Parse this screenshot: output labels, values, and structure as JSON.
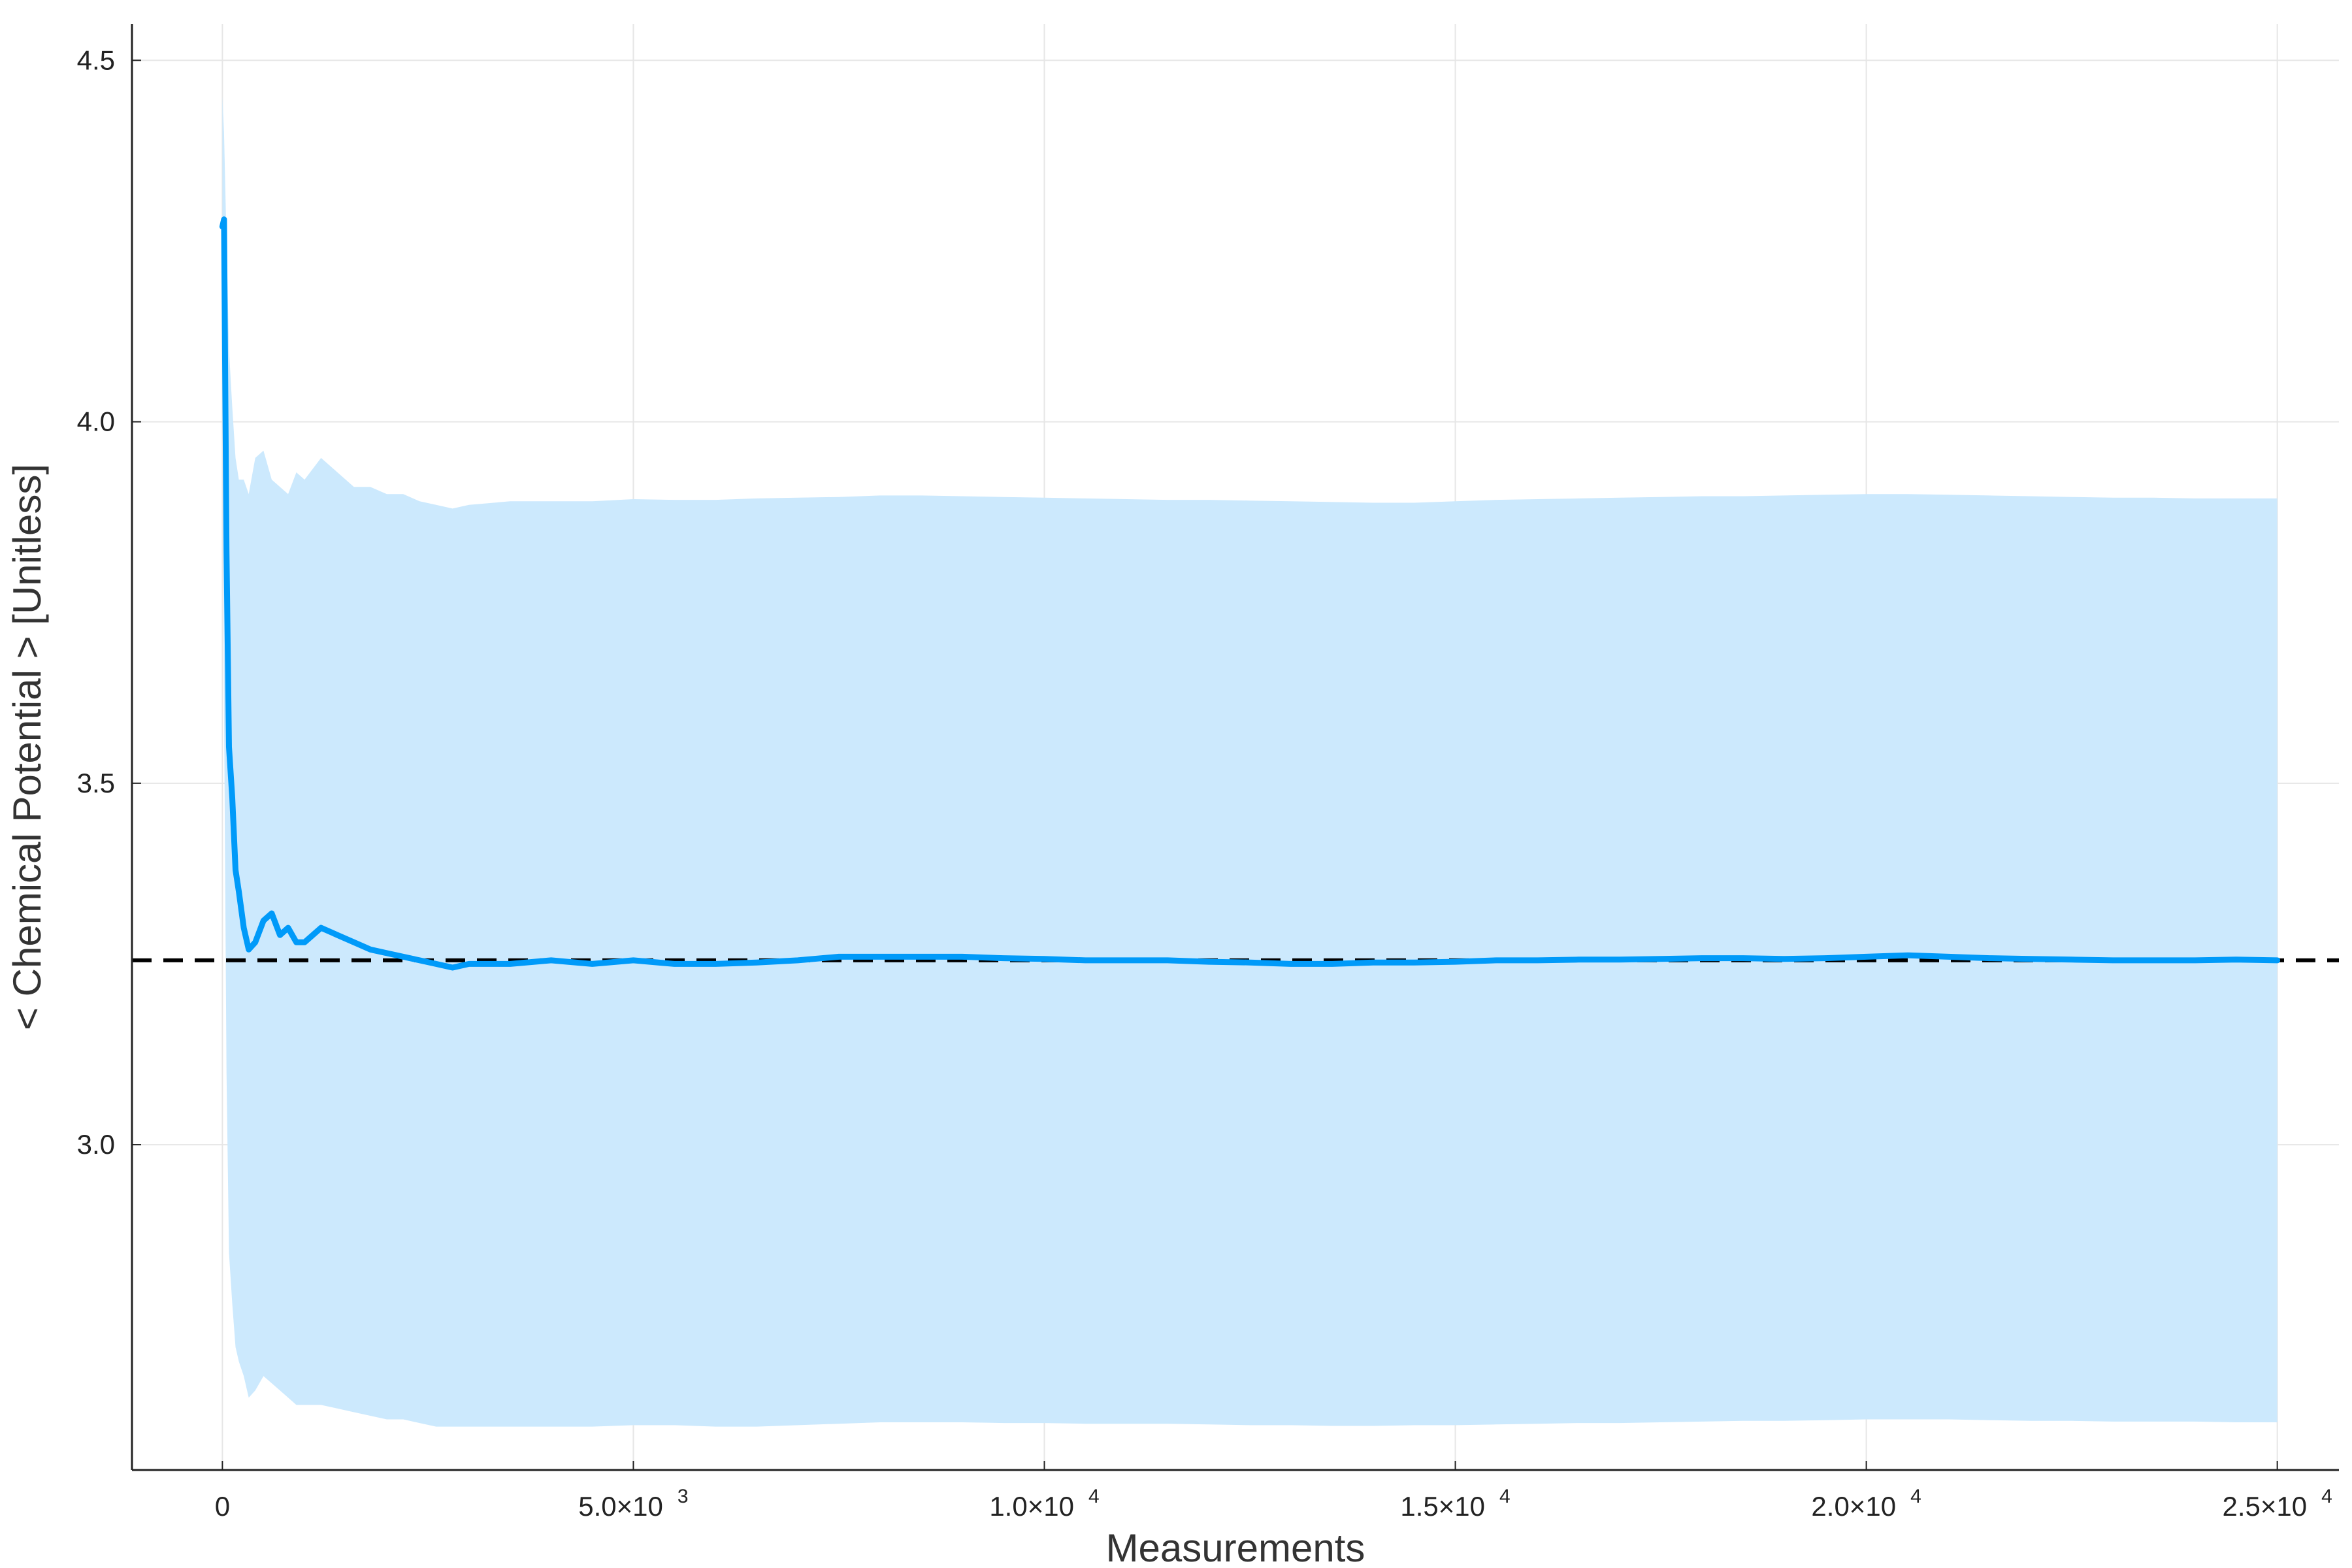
{
  "chart_data": {
    "type": "line",
    "title": "",
    "xlabel": "Measurements",
    "ylabel": "< Chemical Potential > [Unitless]",
    "xlim": [
      -1100,
      25750
    ],
    "ylim": [
      2.55,
      4.55
    ],
    "grid": true,
    "legend": "none",
    "x_ticks": [
      {
        "value": 0,
        "label": "0",
        "exp": ""
      },
      {
        "value": 5000,
        "label": "5.0×10",
        "exp": "3"
      },
      {
        "value": 10000,
        "label": "1.0×10",
        "exp": "4"
      },
      {
        "value": 15000,
        "label": "1.5×10",
        "exp": "4"
      },
      {
        "value": 20000,
        "label": "2.0×10",
        "exp": "4"
      },
      {
        "value": 25000,
        "label": "2.5×10",
        "exp": "4"
      }
    ],
    "y_ticks": [
      {
        "value": 3.0,
        "label": "3.0"
      },
      {
        "value": 3.5,
        "label": "3.5"
      },
      {
        "value": 4.0,
        "label": "4.0"
      },
      {
        "value": 4.5,
        "label": "4.5"
      }
    ],
    "reference_line": {
      "y": 3.255,
      "style": "dashed",
      "color": "#000000"
    },
    "series": [
      {
        "color": "#009af9",
        "band_color": "#cce9fd",
        "x": [
          0,
          20,
          50,
          80,
          120,
          160,
          200,
          260,
          320,
          400,
          500,
          600,
          700,
          800,
          900,
          1000,
          1200,
          1400,
          1600,
          1800,
          2000,
          2200,
          2400,
          2600,
          2800,
          3000,
          3500,
          4000,
          4500,
          5000,
          5500,
          6000,
          6500,
          7000,
          7500,
          8000,
          8500,
          9000,
          9500,
          10000,
          10500,
          11000,
          11500,
          12000,
          12500,
          13000,
          13500,
          14000,
          14500,
          15000,
          15500,
          16000,
          16500,
          17000,
          17500,
          18000,
          18500,
          19000,
          19500,
          20000,
          20500,
          21000,
          21500,
          22000,
          22500,
          23000,
          23500,
          24000,
          24500,
          25000
        ],
        "y": [
          4.27,
          4.28,
          3.82,
          3.55,
          3.48,
          3.38,
          3.35,
          3.3,
          3.27,
          3.28,
          3.31,
          3.32,
          3.29,
          3.3,
          3.28,
          3.28,
          3.3,
          3.29,
          3.28,
          3.27,
          3.265,
          3.26,
          3.255,
          3.25,
          3.245,
          3.25,
          3.25,
          3.255,
          3.25,
          3.255,
          3.25,
          3.25,
          3.252,
          3.255,
          3.26,
          3.26,
          3.26,
          3.26,
          3.258,
          3.257,
          3.255,
          3.255,
          3.255,
          3.253,
          3.252,
          3.25,
          3.25,
          3.252,
          3.252,
          3.253,
          3.255,
          3.255,
          3.256,
          3.256,
          3.257,
          3.258,
          3.258,
          3.257,
          3.258,
          3.26,
          3.262,
          3.26,
          3.258,
          3.257,
          3.256,
          3.255,
          3.255,
          3.255,
          3.256,
          3.255
        ],
        "upper": [
          4.45,
          4.4,
          4.25,
          4.1,
          4.02,
          3.95,
          3.92,
          3.92,
          3.9,
          3.95,
          3.96,
          3.92,
          3.91,
          3.9,
          3.93,
          3.92,
          3.95,
          3.93,
          3.91,
          3.91,
          3.9,
          3.9,
          3.89,
          3.885,
          3.88,
          3.885,
          3.89,
          3.89,
          3.89,
          3.893,
          3.892,
          3.892,
          3.894,
          3.895,
          3.896,
          3.898,
          3.898,
          3.897,
          3.896,
          3.895,
          3.894,
          3.893,
          3.892,
          3.892,
          3.891,
          3.89,
          3.889,
          3.888,
          3.888,
          3.89,
          3.892,
          3.893,
          3.894,
          3.895,
          3.896,
          3.897,
          3.897,
          3.898,
          3.899,
          3.9,
          3.9,
          3.899,
          3.898,
          3.897,
          3.896,
          3.895,
          3.895,
          3.894,
          3.894,
          3.894
        ],
        "lower": [
          4.1,
          3.6,
          3.1,
          2.85,
          2.78,
          2.72,
          2.7,
          2.68,
          2.65,
          2.66,
          2.68,
          2.67,
          2.66,
          2.65,
          2.64,
          2.64,
          2.64,
          2.635,
          2.63,
          2.625,
          2.62,
          2.62,
          2.615,
          2.61,
          2.61,
          2.61,
          2.61,
          2.61,
          2.61,
          2.612,
          2.612,
          2.61,
          2.61,
          2.612,
          2.614,
          2.616,
          2.616,
          2.616,
          2.615,
          2.615,
          2.614,
          2.614,
          2.614,
          2.613,
          2.612,
          2.612,
          2.611,
          2.611,
          2.612,
          2.612,
          2.613,
          2.614,
          2.615,
          2.615,
          2.616,
          2.617,
          2.618,
          2.618,
          2.619,
          2.62,
          2.62,
          2.62,
          2.619,
          2.618,
          2.618,
          2.617,
          2.617,
          2.617,
          2.616,
          2.616
        ]
      }
    ]
  }
}
